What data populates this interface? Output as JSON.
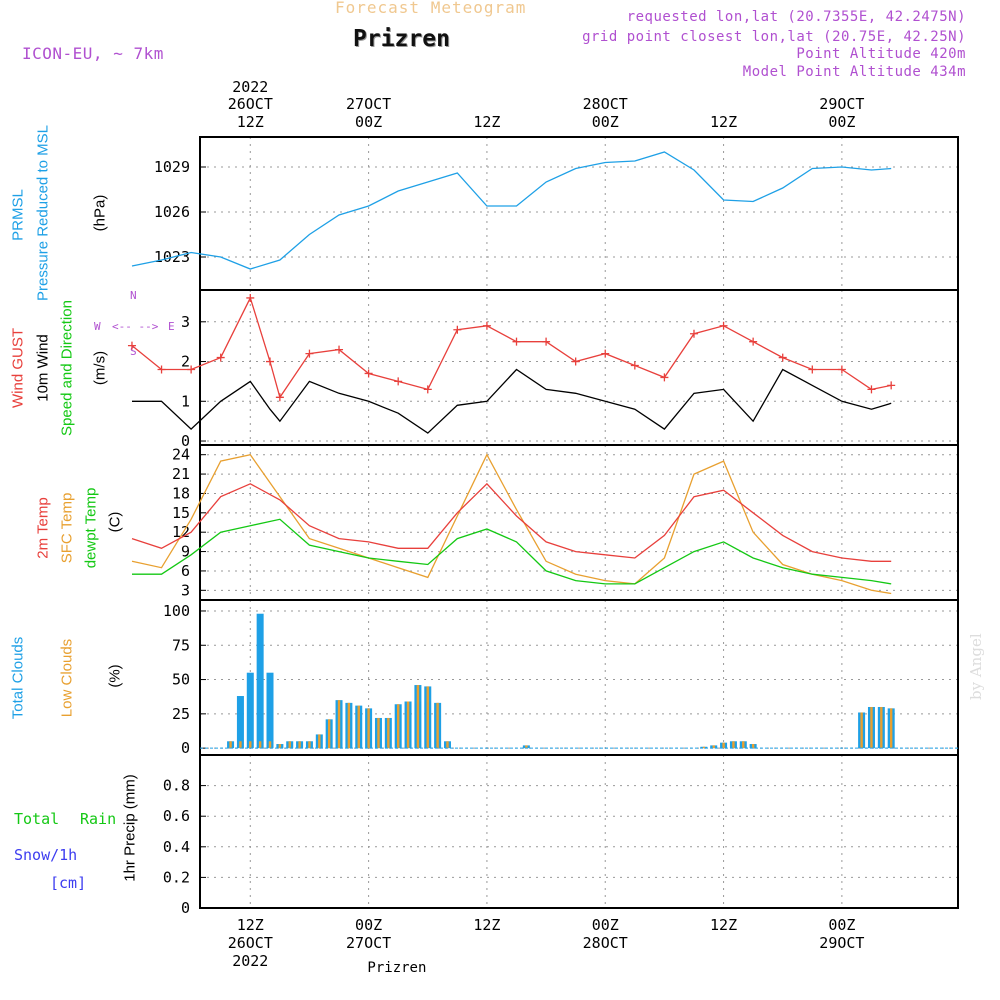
{
  "header": {
    "product": "Forecast Meteogram",
    "location": "Prizren",
    "model": "ICON-EU, ~ 7km",
    "requested": "requested lon,lat (20.7355E, 42.2475N)",
    "grid_point": "grid point closest lon,lat (20.75E, 42.25N)",
    "point_altitude": "Point Altitude 420m",
    "model_altitude": "Model Point Altitude 434m",
    "watermark": "by Angel"
  },
  "time_axis": {
    "top_year": "2022",
    "ticks": [
      {
        "hour": 12,
        "day": "26OCT",
        "hr": "12Z",
        "year": "2022"
      },
      {
        "hour": 24,
        "day": "27OCT",
        "hr": "00Z",
        "year": ""
      },
      {
        "hour": 36,
        "day": "",
        "hr": "12Z",
        "year": ""
      },
      {
        "hour": 48,
        "day": "28OCT",
        "hr": "00Z",
        "year": ""
      },
      {
        "hour": 60,
        "day": "",
        "hr": "12Z",
        "year": ""
      },
      {
        "hour": 72,
        "day": "29OCT",
        "hr": "00Z",
        "year": ""
      }
    ],
    "bottom_label": "Prizren"
  },
  "panels": {
    "pressure": {
      "label1": "PRMSL",
      "label2": "Pressure Reduced to MSL",
      "unit": "(hPa)",
      "ticks": [
        "1023",
        "1026",
        "1029"
      ]
    },
    "wind": {
      "label_gust": "Wind GUST",
      "label_wind": "10m Wind",
      "label_dir": "Speed and Direction",
      "unit": "(m/s)",
      "ticks": [
        "0",
        "1",
        "2",
        "3"
      ],
      "compass": {
        "n": "N",
        "s": "S",
        "w": "W",
        "e": "E",
        "ns": "^ | v",
        "we": "<-- -->"
      }
    },
    "temp": {
      "label_t2m": "2m Temp",
      "label_sfc": "SFC Temp",
      "label_dew": "dewpt Temp",
      "unit": "(C)",
      "ticks": [
        "3",
        "6",
        "9",
        "12",
        "15",
        "18",
        "21",
        "24"
      ]
    },
    "clouds": {
      "label_total": "Total Clouds",
      "label_low": "Low Clouds",
      "unit": "(%)",
      "ticks": [
        "0",
        "25",
        "50",
        "75",
        "100"
      ]
    },
    "precip": {
      "label_rain1": "Total",
      "label_rain2": "Rain",
      "label_snow": "Snow/1h",
      "label_cm": "[cm]",
      "unit": "1hr Precip (mm)",
      "ticks": [
        "0",
        "0.2",
        "0.4",
        "0.6",
        "0.8"
      ]
    }
  },
  "colors": {
    "pressure": "#1ea0e6",
    "gust": "#e8403c",
    "wind": "#000000",
    "t2m": "#e8403c",
    "sfc": "#e8a030",
    "dew": "#14c814",
    "total_clouds": "#1ea0e6",
    "low_clouds": "#e8a030",
    "meta": "#b050d0",
    "title": "#f0c890"
  },
  "chart_data": [
    {
      "type": "line",
      "title": "PRMSL Pressure Reduced to MSL",
      "ylabel": "(hPa)",
      "ylim": [
        1020.8,
        1031
      ],
      "x_unit": "hours after 26OCT 00Z",
      "x": [
        0,
        3,
        6,
        9,
        12,
        15,
        18,
        21,
        24,
        27,
        30,
        33,
        36,
        39,
        42,
        45,
        48,
        51,
        54,
        57,
        60,
        63,
        66,
        69,
        72,
        75,
        77
      ],
      "series": [
        {
          "name": "PRMSL",
          "values": [
            1022.4,
            1022.8,
            1023.3,
            1023.0,
            1022.2,
            1022.8,
            1024.5,
            1025.8,
            1026.4,
            1027.4,
            1028.0,
            1028.6,
            1026.4,
            1026.4,
            1028.0,
            1028.9,
            1029.3,
            1029.4,
            1030.0,
            1028.8,
            1026.8,
            1026.7,
            1027.6,
            1028.9,
            1029.0,
            1028.8,
            1028.9
          ]
        }
      ]
    },
    {
      "type": "line",
      "title": "Wind GUST / 10m Wind",
      "ylabel": "(m/s)",
      "ylim": [
        -0.1,
        3.8
      ],
      "x_unit": "hours after 26OCT 00Z",
      "x": [
        0,
        3,
        6,
        9,
        12,
        14,
        15,
        18,
        21,
        24,
        27,
        30,
        33,
        36,
        39,
        42,
        45,
        48,
        51,
        54,
        57,
        60,
        63,
        66,
        69,
        72,
        75,
        77
      ],
      "series": [
        {
          "name": "Wind GUST",
          "values": [
            2.4,
            1.8,
            1.8,
            2.1,
            3.6,
            2.0,
            1.1,
            2.2,
            2.3,
            1.7,
            1.5,
            1.3,
            2.8,
            2.9,
            2.5,
            2.5,
            2.0,
            2.2,
            1.9,
            1.6,
            2.7,
            2.9,
            2.5,
            2.1,
            1.8,
            1.8,
            1.3,
            1.4
          ]
        },
        {
          "name": "10m Wind",
          "values": [
            1.0,
            1.0,
            0.3,
            1.0,
            1.5,
            0.8,
            0.5,
            1.5,
            1.2,
            1.0,
            0.7,
            0.2,
            0.9,
            1.0,
            1.8,
            1.3,
            1.2,
            1.0,
            0.8,
            0.3,
            1.2,
            1.3,
            0.5,
            1.8,
            1.4,
            1.0,
            0.8,
            0.95
          ]
        }
      ]
    },
    {
      "type": "line",
      "title": "2m Temp / SFC Temp / dewpt Temp",
      "ylabel": "(C)",
      "ylim": [
        1.5,
        25.5
      ],
      "x_unit": "hours after 26OCT 00Z",
      "x": [
        0,
        3,
        6,
        9,
        12,
        15,
        18,
        21,
        24,
        27,
        30,
        33,
        36,
        39,
        42,
        45,
        48,
        51,
        54,
        57,
        60,
        63,
        66,
        69,
        72,
        75,
        77
      ],
      "series": [
        {
          "name": "2m Temp",
          "values": [
            11.0,
            9.5,
            12.0,
            17.5,
            19.5,
            17.0,
            13.0,
            11.0,
            10.5,
            9.5,
            9.5,
            15.0,
            19.5,
            14.5,
            10.5,
            9.0,
            8.5,
            8.0,
            11.5,
            17.5,
            18.5,
            15.0,
            11.5,
            9.0,
            8.0,
            7.5,
            7.5
          ]
        },
        {
          "name": "SFC Temp",
          "values": [
            7.5,
            6.5,
            14.0,
            23.0,
            24.0,
            17.5,
            11.0,
            9.5,
            8.0,
            6.5,
            5.0,
            14.5,
            24.0,
            15.5,
            7.5,
            5.5,
            4.5,
            4.0,
            8.0,
            21.0,
            23.0,
            12.0,
            7.0,
            5.5,
            4.5,
            3.0,
            2.5
          ]
        },
        {
          "name": "dewpt Temp",
          "values": [
            5.5,
            5.5,
            8.5,
            12.0,
            13.0,
            14.0,
            10.0,
            9.0,
            8.0,
            7.5,
            7.0,
            11.0,
            12.5,
            10.5,
            6.0,
            4.5,
            4.0,
            4.0,
            6.5,
            9.0,
            10.5,
            8.0,
            6.5,
            5.5,
            5.0,
            4.5,
            4.0
          ]
        }
      ]
    },
    {
      "type": "bar",
      "title": "Total Clouds / Low Clouds",
      "ylabel": "(%)",
      "ylim": [
        -5,
        108
      ],
      "x_unit": "hours after 26OCT 00Z",
      "x": [
        10,
        11,
        12,
        13,
        14,
        15,
        16,
        17,
        18,
        19,
        20,
        21,
        22,
        23,
        24,
        25,
        26,
        27,
        28,
        29,
        30,
        31,
        32,
        33,
        34,
        35,
        40,
        58,
        59,
        60,
        61,
        62,
        63,
        74,
        75,
        76,
        77
      ],
      "series": [
        {
          "name": "Total Clouds",
          "values": [
            5,
            38,
            55,
            98,
            55,
            3,
            5,
            5,
            5,
            10,
            21,
            35,
            33,
            31,
            29,
            22,
            22,
            32,
            34,
            46,
            45,
            33,
            5,
            0,
            0,
            0,
            2,
            1,
            2,
            4,
            5,
            5,
            3,
            26,
            30,
            30,
            29
          ]
        },
        {
          "name": "Low Clouds",
          "values": [
            5,
            5,
            5,
            5,
            5,
            3,
            5,
            5,
            5,
            10,
            21,
            35,
            33,
            31,
            29,
            22,
            22,
            32,
            34,
            46,
            45,
            33,
            5,
            0,
            0,
            0,
            2,
            1,
            2,
            4,
            5,
            5,
            3,
            26,
            30,
            30,
            29
          ]
        }
      ]
    },
    {
      "type": "bar",
      "title": "1hr Precip",
      "ylabel": "1hr Precip (mm)",
      "ylim": [
        0,
        1
      ],
      "x_unit": "hours after 26OCT 00Z",
      "x": [
        0,
        77
      ],
      "series": [
        {
          "name": "Total Rain",
          "values": [
            0,
            0
          ]
        }
      ]
    }
  ]
}
